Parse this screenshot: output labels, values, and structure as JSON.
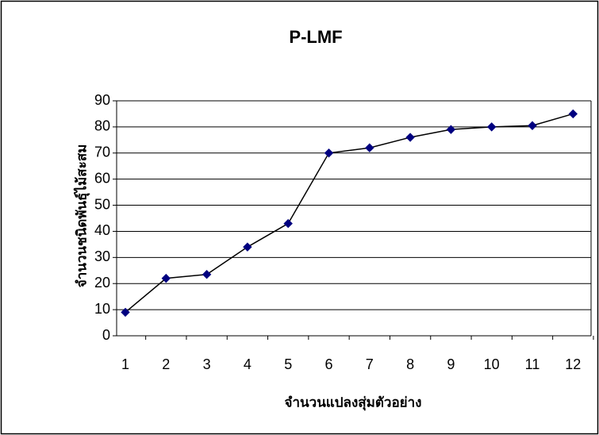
{
  "chart_data": {
    "type": "line",
    "title": "P-LMF",
    "x_label": "จำนวนแปลงสุ่มตัวอย่าง",
    "y_label": "จำนวนชนิดพันธุ์ไม้สะสม",
    "categories": [
      1,
      2,
      3,
      4,
      5,
      6,
      7,
      8,
      9,
      10,
      11,
      12
    ],
    "values": [
      9,
      22,
      23.5,
      34,
      43,
      70,
      72,
      76,
      79,
      80,
      80.5,
      85
    ],
    "color": "#000080",
    "line_color": "#000000",
    "ylim": [
      0,
      90
    ],
    "yticks": [
      0,
      10,
      20,
      30,
      40,
      50,
      60,
      70,
      80,
      90
    ],
    "grid": true
  }
}
